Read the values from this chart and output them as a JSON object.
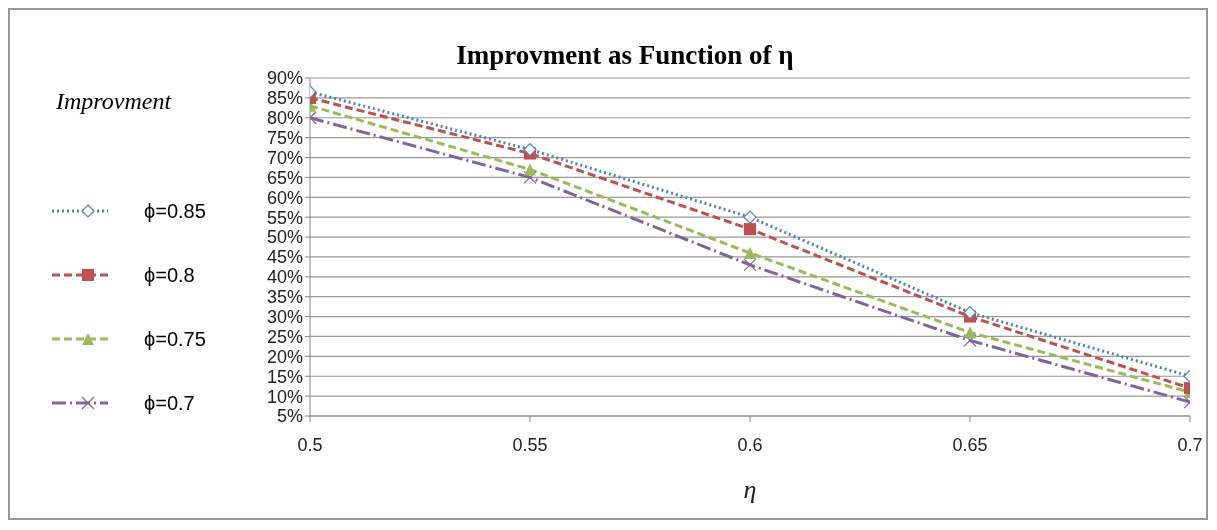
{
  "chart_data": {
    "type": "line",
    "title": "Improvment as Function of η",
    "xlabel": "η",
    "legend_title": "Improvment",
    "legend": "left",
    "grid": "y",
    "x": [
      0.5,
      0.55,
      0.6,
      0.65,
      0.7
    ],
    "xlim": [
      0.5,
      0.7
    ],
    "xticks": [
      0.5,
      0.55,
      0.6,
      0.65,
      0.7
    ],
    "ylim": [
      5,
      90
    ],
    "yticks": [
      {
        "value": 5,
        "label": "5%"
      },
      {
        "value": 10,
        "label": "10%"
      },
      {
        "value": 15,
        "label": "15%"
      },
      {
        "value": 20,
        "label": "20%"
      },
      {
        "value": 25,
        "label": "25%"
      },
      {
        "value": 30,
        "label": "30%"
      },
      {
        "value": 35,
        "label": "35%"
      },
      {
        "value": 40,
        "label": "40%"
      },
      {
        "value": 45,
        "label": "45%"
      },
      {
        "value": 50,
        "label": "50%"
      },
      {
        "value": 55,
        "label": "55%"
      },
      {
        "value": 60,
        "label": "60%"
      },
      {
        "value": 65,
        "label": "65%"
      },
      {
        "value": 70,
        "label": "70%"
      },
      {
        "value": 75,
        "label": "75%"
      },
      {
        "value": 80,
        "label": "80%"
      },
      {
        "value": 85,
        "label": "85%"
      },
      {
        "value": 90,
        "label": "90%"
      }
    ],
    "series": [
      {
        "name": "ϕ=0.85",
        "color": "#4f81bd",
        "marker": "diamond",
        "line_style": "dotted",
        "values": [
          86.5,
          72,
          55,
          31,
          15
        ]
      },
      {
        "name": "ϕ=0.8",
        "color": "#c0504d",
        "marker": "square",
        "line_style": "dashed",
        "values": [
          85,
          71,
          52,
          30,
          12
        ]
      },
      {
        "name": "ϕ=0.75",
        "color": "#9bbb59",
        "marker": "triangle",
        "line_style": "dashed",
        "values": [
          83,
          67,
          46,
          26,
          11
        ]
      },
      {
        "name": "ϕ=0.7",
        "color": "#8064a2",
        "marker": "cross",
        "line_style": "dashdot",
        "values": [
          80,
          65,
          43,
          24,
          8.5
        ]
      }
    ]
  }
}
